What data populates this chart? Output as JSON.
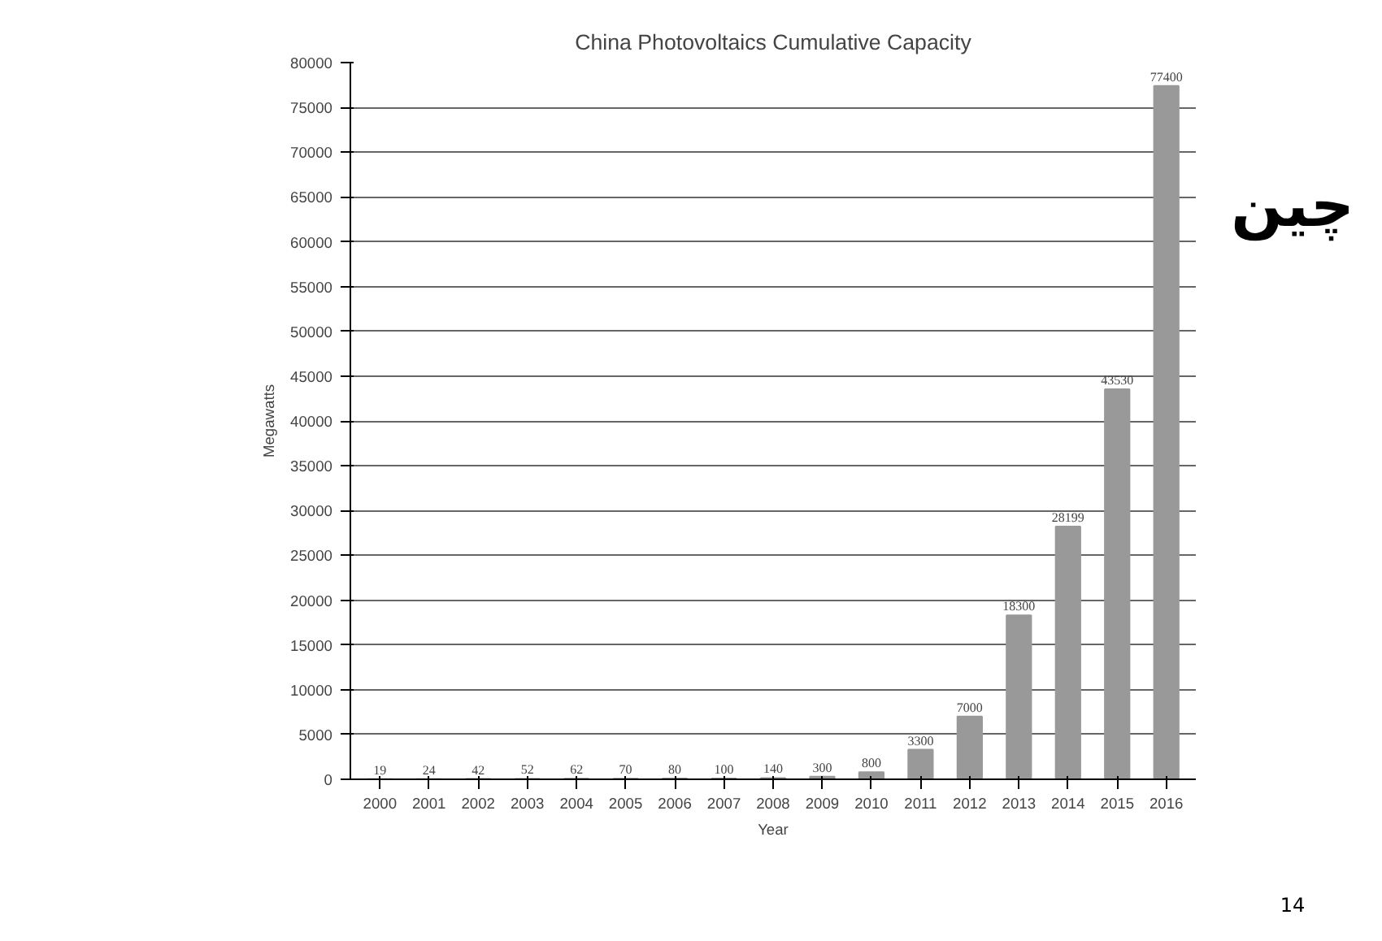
{
  "chart_data": {
    "type": "bar",
    "title": "China Photovoltaics Cumulative Capacity",
    "xlabel": "Year",
    "ylabel": "Megawatts",
    "categories": [
      "2000",
      "2001",
      "2002",
      "2003",
      "2004",
      "2005",
      "2006",
      "2007",
      "2008",
      "2009",
      "2010",
      "2011",
      "2012",
      "2013",
      "2014",
      "2015",
      "2016"
    ],
    "values": [
      19,
      24,
      42,
      52,
      62,
      70,
      80,
      100,
      140,
      300,
      800,
      3300,
      7000,
      18300,
      28199,
      43530,
      77400
    ],
    "color": "#999999",
    "data_labels": true,
    "grid": "y",
    "ylim": [
      0,
      80000
    ],
    "yticks": [
      0,
      5000,
      10000,
      15000,
      20000,
      25000,
      30000,
      35000,
      40000,
      45000,
      50000,
      55000,
      60000,
      65000,
      70000,
      75000,
      80000
    ],
    "annotations": [
      "چین",
      "14"
    ]
  }
}
